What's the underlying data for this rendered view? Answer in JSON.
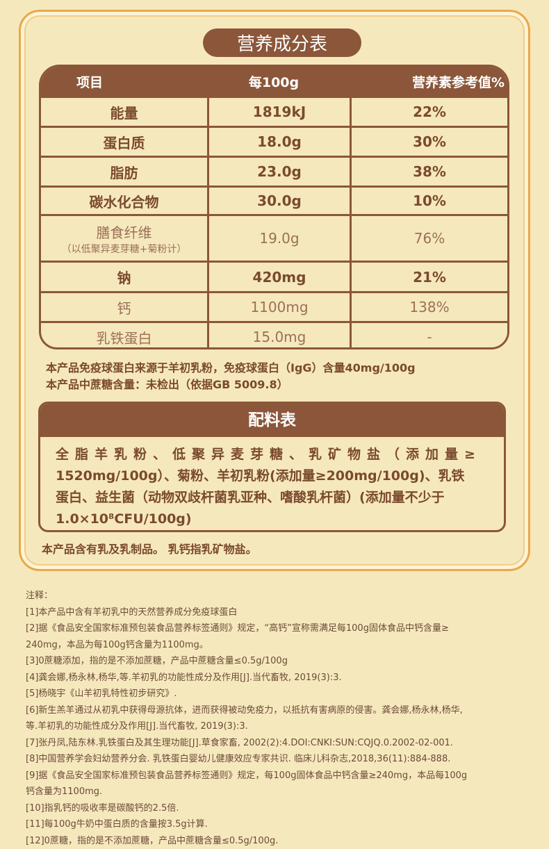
{
  "title": "营养成分表",
  "table": {
    "headers": [
      "项目",
      "每100g",
      "营养素参考值%"
    ],
    "rows": [
      {
        "item": "能量",
        "sub": "",
        "per100g": "1819kJ",
        "nrv": "22%",
        "style": "bold"
      },
      {
        "item": "蛋白质",
        "sub": "",
        "per100g": "18.0g",
        "nrv": "30%",
        "style": "bold"
      },
      {
        "item": "脂肪",
        "sub": "",
        "per100g": "23.0g",
        "nrv": "38%",
        "style": "bold"
      },
      {
        "item": "碳水化合物",
        "sub": "",
        "per100g": "30.0g",
        "nrv": "10%",
        "style": "bold"
      },
      {
        "item": "膳食纤维",
        "sub": "（以低聚异麦芽糖+菊粉计）",
        "per100g": "19.0g",
        "nrv": "76%",
        "style": "light"
      },
      {
        "item": "钠",
        "sub": "",
        "per100g": "420mg",
        "nrv": "21%",
        "style": "bold"
      },
      {
        "item": "钙",
        "sub": "",
        "per100g": "1100mg",
        "nrv": "138%",
        "style": "light"
      },
      {
        "item": "乳铁蛋白",
        "sub": "",
        "per100g": "15.0mg",
        "nrv": "-",
        "style": "light"
      }
    ]
  },
  "notes_under_table": [
    "本产品免疫球蛋白来源于羊初乳粉，免疫球蛋白（IgG）含量40mg/100g",
    "本产品中蔗糖含量：未检出（依据GB 5009.8）"
  ],
  "ingredients": {
    "title": "配料表",
    "lines": [
      "全脂羊乳粉、低聚异麦芽糖、乳矿物盐（添加量≥",
      "1520mg/100g）、菊粉、羊初乳粉(添加量≥200mg/100g)、乳铁",
      "蛋白、益生菌（动物双歧杆菌乳亚种、嗜酸乳杆菌）(添加量不少于",
      "1.0×10⁸CFU/100g)"
    ]
  },
  "allergen_note": "本产品含有乳及乳制品。  乳钙指乳矿物盐。",
  "footnotes": [
    "注释：",
    "[1]本产品中含有羊初乳中的天然营养成分免疫球蛋白",
    "[2]据《食品安全国家标准预包装食品营养标签通则》规定，“高钙”宣称需满足每100g固体食品中钙含量≥",
    "240mg，本品为每100g钙含量为1100mg。",
    "[3]0蔗糖添加，指的是不添加蔗糖，产品中蔗糖含量≤0.5g/100g",
    "[4]龚会娜,杨永林,杨华,等.羊初乳的功能性成分及作用[J].当代畜牧, 2019(3):3.",
    "[5]杨晓宇《山羊初乳特性初步研究》.",
    "[6]新生羔羊通过从初乳中获得母源抗体，进而获得被动免疫力，以抵抗有害病原的侵害。龚会娜,杨永林,杨华,",
    "等.羊初乳的功能性成分及作用[J].当代畜牧, 2019(3):3.",
    "[7]张丹凤,陆东林.乳铁蛋白及其生理功能[J].草食家畜, 2002(2):4.DOI:CNKI:SUN:CQJQ.0.2002-02-001.",
    "[8]中国营养学会妇幼营养分会. 乳铁蛋白婴幼儿健康效应专家共识. 临床儿科杂志,2018,36(11):884-888.",
    "[9]据《食品安全国家标准预包装食品营养标签通则》规定，每100g固体食品中钙含量≥240mg，本品每100g",
    "钙含量为1100mg.",
    "[10]指乳钙的吸收率是碳酸钙的2.5倍.",
    "[11]每100g牛奶中蛋白质的含量按3.5g计算.",
    "[12]0蔗糖，指的是不添加蔗糖，产品中蔗糖含量≤0.5g/100g."
  ],
  "colors": {
    "brown": "#8b5639",
    "background": "#f6e8bd",
    "border": "#e9a84a"
  }
}
